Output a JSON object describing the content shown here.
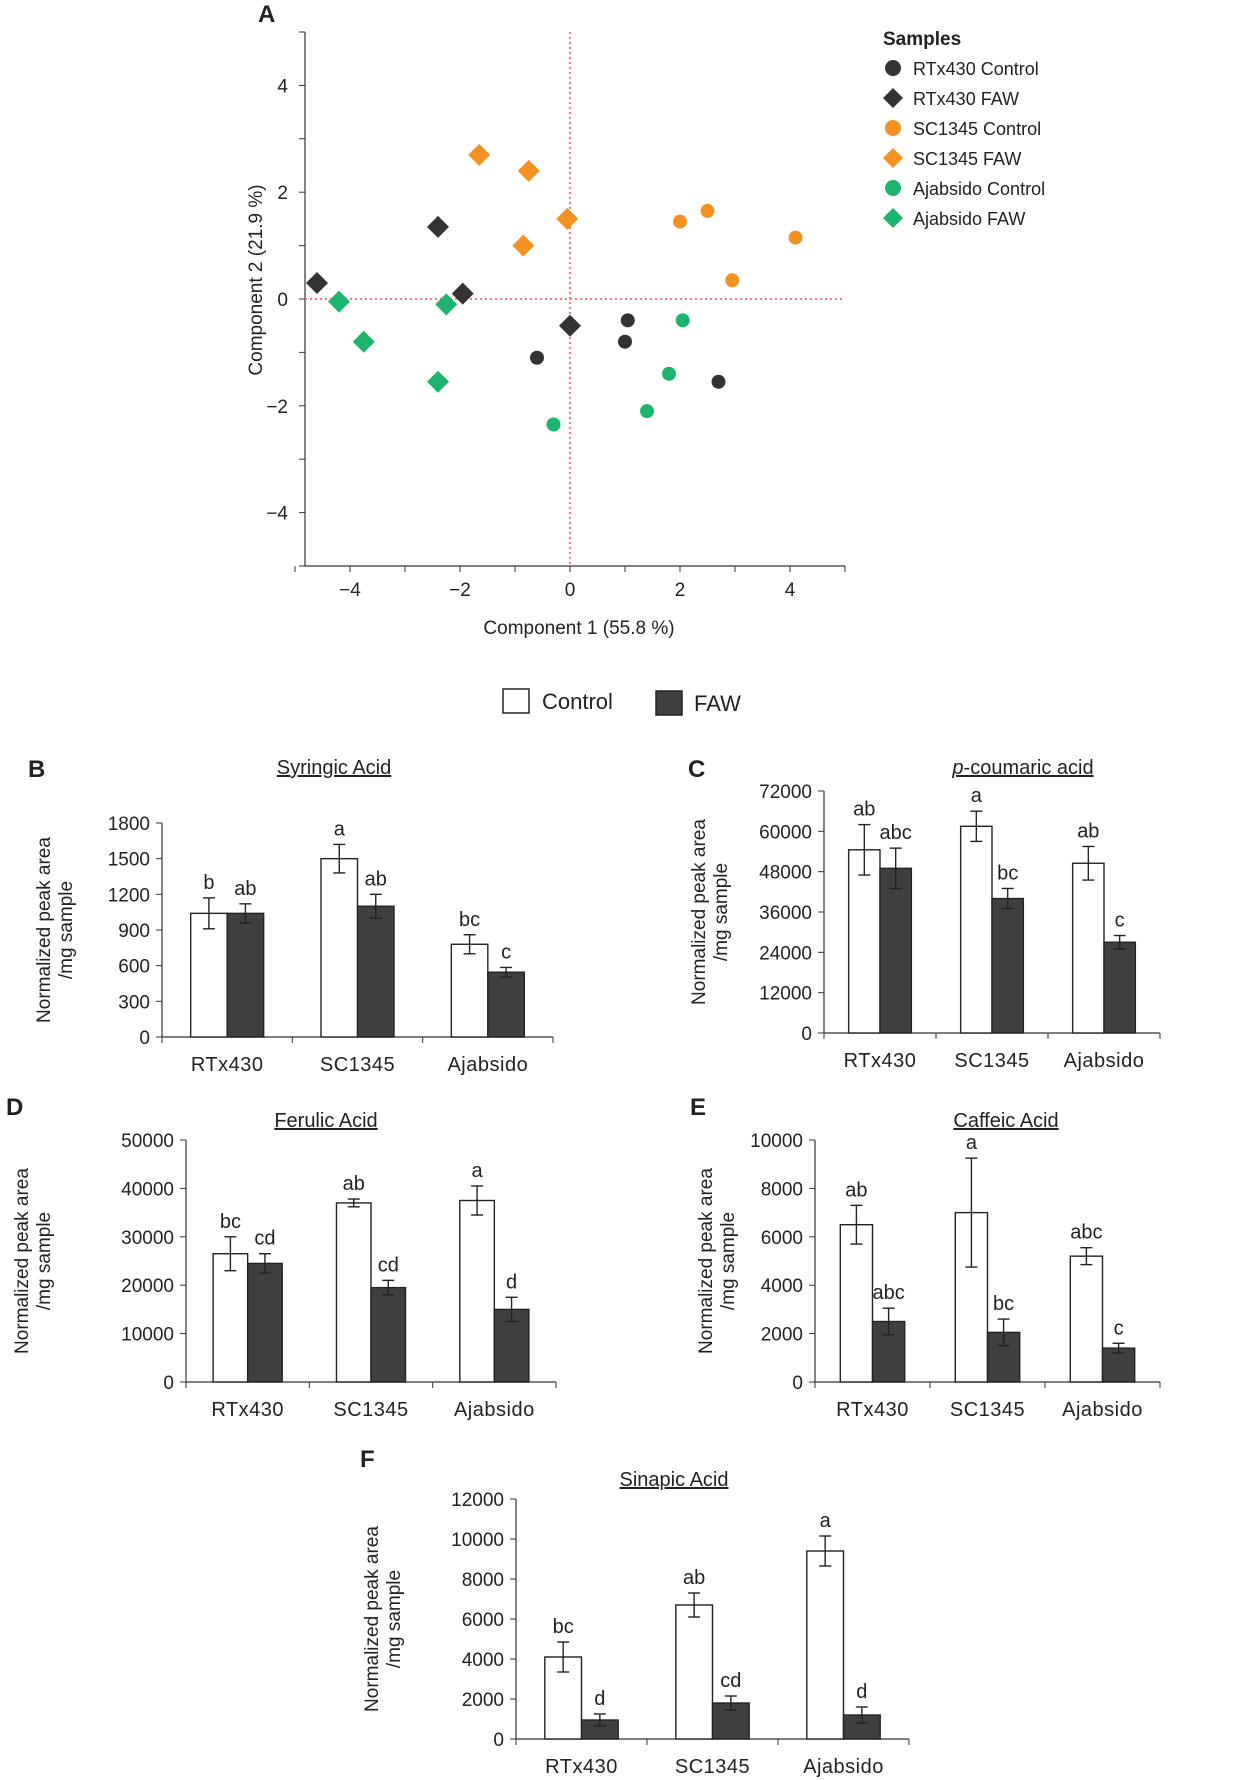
{
  "figure": {
    "legend": {
      "control_label": "Control",
      "faw_label": "FAW",
      "control_fill": "#ffffff",
      "faw_fill": "#404040"
    }
  },
  "chart_data": [
    {
      "panel": "A",
      "type": "scatter",
      "xlabel": "Component 1  (55.8 %)",
      "ylabel": "Component 2  (21.9 %)",
      "xlim": [
        -5,
        5
      ],
      "ylim": [
        -5,
        5
      ],
      "xticks": [
        -4,
        -2,
        0,
        2,
        4
      ],
      "yticks": [
        -4,
        -2,
        0,
        2,
        4
      ],
      "reference_lines": [
        0,
        0
      ],
      "legend_title": "Samples",
      "series": [
        {
          "name": "RTx430 Control",
          "marker": "circle",
          "color": "#333333",
          "points": [
            [
              -0.6,
              -1.1
            ],
            [
              1.0,
              -0.8
            ],
            [
              1.05,
              -0.4
            ],
            [
              2.7,
              -1.55
            ]
          ]
        },
        {
          "name": "RTx430 FAW",
          "marker": "diamond",
          "color": "#333333",
          "points": [
            [
              -4.6,
              0.3
            ],
            [
              -2.4,
              1.35
            ],
            [
              -1.95,
              0.1
            ],
            [
              0.0,
              -0.5
            ]
          ]
        },
        {
          "name": "SC1345 Control",
          "marker": "circle",
          "color": "#f39221",
          "points": [
            [
              2.0,
              1.45
            ],
            [
              2.5,
              1.65
            ],
            [
              2.95,
              0.35
            ],
            [
              4.1,
              1.15
            ]
          ]
        },
        {
          "name": "SC1345 FAW",
          "marker": "diamond",
          "color": "#f39221",
          "points": [
            [
              -1.65,
              2.7
            ],
            [
              -0.75,
              2.4
            ],
            [
              -0.85,
              1.0
            ],
            [
              -0.05,
              1.5
            ]
          ]
        },
        {
          "name": "Ajabsido Control",
          "marker": "circle",
          "color": "#1db46e",
          "points": [
            [
              -0.3,
              -2.35
            ],
            [
              1.4,
              -2.1
            ],
            [
              1.8,
              -1.4
            ],
            [
              2.05,
              -0.4
            ]
          ]
        },
        {
          "name": "Ajabsido FAW",
          "marker": "diamond",
          "color": "#1db46e",
          "points": [
            [
              -4.2,
              -0.05
            ],
            [
              -3.75,
              -0.8
            ],
            [
              -2.25,
              -0.1
            ],
            [
              -2.4,
              -1.55
            ]
          ]
        }
      ]
    },
    {
      "panel": "B",
      "type": "bar",
      "title": "Syringic Acid",
      "ylabel": [
        "Normalized peak area",
        "/mg sample"
      ],
      "categories": [
        "RTx430",
        "SC1345",
        "Ajabsido"
      ],
      "ylim": [
        0,
        1800
      ],
      "yticks": [
        0,
        300,
        600,
        900,
        1200,
        1500,
        1800
      ],
      "series": [
        {
          "name": "Control",
          "values": [
            1040,
            1500,
            780
          ],
          "errors": [
            130,
            120,
            80
          ],
          "letters": [
            "b",
            "a",
            "bc"
          ]
        },
        {
          "name": "FAW",
          "values": [
            1040,
            1100,
            545
          ],
          "errors": [
            80,
            100,
            40
          ],
          "letters": [
            "ab",
            "ab",
            "c"
          ]
        }
      ]
    },
    {
      "panel": "C",
      "type": "bar",
      "title": "p-coumaric acid",
      "title_italic_prefix": "p",
      "title_rest": "-coumaric acid",
      "ylabel": [
        "Normalized peak area",
        "/mg sample"
      ],
      "categories": [
        "RTx430",
        "SC1345",
        "Ajabsido"
      ],
      "ylim": [
        0,
        72000
      ],
      "yticks": [
        0,
        12000,
        24000,
        36000,
        48000,
        60000,
        72000
      ],
      "series": [
        {
          "name": "Control",
          "values": [
            54500,
            61500,
            50500
          ],
          "errors": [
            7500,
            4500,
            5000
          ],
          "letters": [
            "ab",
            "a",
            "ab"
          ]
        },
        {
          "name": "FAW",
          "values": [
            49000,
            40000,
            27000
          ],
          "errors": [
            6000,
            3000,
            2000
          ],
          "letters": [
            "abc",
            "bc",
            "c"
          ]
        }
      ]
    },
    {
      "panel": "D",
      "type": "bar",
      "title": "Ferulic Acid",
      "ylabel": [
        "Normalized peak area",
        "/mg sample"
      ],
      "categories": [
        "RTx430",
        "SC1345",
        "Ajabsido"
      ],
      "ylim": [
        0,
        50000
      ],
      "yticks": [
        0,
        10000,
        20000,
        30000,
        40000,
        50000
      ],
      "series": [
        {
          "name": "Control",
          "values": [
            26500,
            37000,
            37500
          ],
          "errors": [
            3500,
            800,
            3000
          ],
          "letters": [
            "bc",
            "ab",
            "a"
          ]
        },
        {
          "name": "FAW",
          "values": [
            24500,
            19500,
            15000
          ],
          "errors": [
            2000,
            1500,
            2500
          ],
          "letters": [
            "cd",
            "cd",
            "d"
          ]
        }
      ]
    },
    {
      "panel": "E",
      "type": "bar",
      "title": "Caffeic Acid",
      "ylabel": [
        "Normalized peak area",
        "/mg sample"
      ],
      "categories": [
        "RTx430",
        "SC1345",
        "Ajabsido"
      ],
      "ylim": [
        0,
        10000
      ],
      "yticks": [
        0,
        2000,
        4000,
        6000,
        8000,
        10000
      ],
      "series": [
        {
          "name": "Control",
          "values": [
            6500,
            7000,
            5200
          ],
          "errors": [
            800,
            2250,
            350
          ],
          "letters": [
            "ab",
            "a",
            "abc"
          ]
        },
        {
          "name": "FAW",
          "values": [
            2500,
            2050,
            1400
          ],
          "errors": [
            550,
            550,
            200
          ],
          "letters": [
            "abc",
            "bc",
            "c"
          ]
        }
      ]
    },
    {
      "panel": "F",
      "type": "bar",
      "title": "Sinapic Acid",
      "ylabel": [
        "Normalized peak area",
        "/mg sample"
      ],
      "categories": [
        "RTx430",
        "SC1345",
        "Ajabsido"
      ],
      "ylim": [
        0,
        12000
      ],
      "yticks": [
        0,
        2000,
        4000,
        6000,
        8000,
        10000,
        12000
      ],
      "series": [
        {
          "name": "Control",
          "values": [
            4100,
            6700,
            9400
          ],
          "errors": [
            750,
            600,
            750
          ],
          "letters": [
            "bc",
            "ab",
            "a"
          ]
        },
        {
          "name": "FAW",
          "values": [
            950,
            1800,
            1200
          ],
          "errors": [
            300,
            350,
            400
          ],
          "letters": [
            "d",
            "cd",
            "d"
          ]
        }
      ]
    }
  ]
}
